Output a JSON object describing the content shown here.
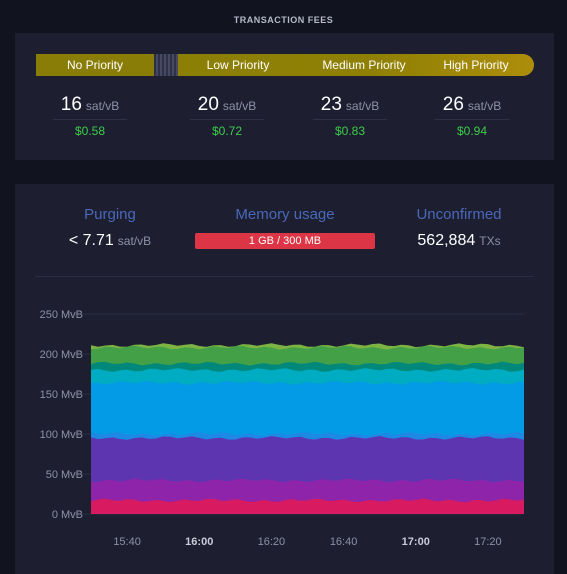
{
  "fees": {
    "title": "TRANSACTION FEES",
    "priorities": [
      {
        "label": "No Priority"
      },
      {
        "label": "Low Priority"
      },
      {
        "label": "Medium Priority"
      },
      {
        "label": "High Priority"
      }
    ],
    "values": [
      {
        "rate": "16",
        "unit": "sat/vB",
        "usd": "$0.58"
      },
      {
        "rate": "20",
        "unit": "sat/vB",
        "usd": "$0.72"
      },
      {
        "rate": "23",
        "unit": "sat/vB",
        "usd": "$0.83"
      },
      {
        "rate": "26",
        "unit": "sat/vB",
        "usd": "$0.94"
      }
    ],
    "colors": {
      "priority_bar": "#8f8005",
      "usd_text": "#3bcc49"
    }
  },
  "stats": {
    "purging": {
      "title": "Purging",
      "value": "< 7.71",
      "unit": "sat/vB"
    },
    "memory": {
      "title": "Memory usage",
      "value": "1 GB / 300 MB",
      "bar_color": "#dc3545"
    },
    "unconfirmed": {
      "title": "Unconfirmed",
      "value": "562,884",
      "unit": "TXs"
    }
  },
  "chart_data": {
    "type": "area",
    "stacked": true,
    "ylabel_unit": "MvB",
    "ylim": [
      0,
      250
    ],
    "y_ticks": [
      "250 MvB",
      "200 MvB",
      "150 MvB",
      "100 MvB",
      "50 MvB",
      "0 MvB"
    ],
    "x_ticks": [
      {
        "label": "15:40",
        "bold": false
      },
      {
        "label": "16:00",
        "bold": true
      },
      {
        "label": "16:20",
        "bold": false
      },
      {
        "label": "16:40",
        "bold": false
      },
      {
        "label": "17:00",
        "bold": true
      },
      {
        "label": "17:20",
        "bold": false
      }
    ],
    "x_range": [
      "15:30",
      "17:30"
    ],
    "grid": true,
    "layers": [
      {
        "color": "#d81b60",
        "top": 17
      },
      {
        "color": "#8e24aa",
        "top": 42
      },
      {
        "color": "#5e35b1",
        "top": 95
      },
      {
        "color": "#1e88e5",
        "top": 100
      },
      {
        "color": "#039be5",
        "top": 164
      },
      {
        "color": "#00acc1",
        "top": 180
      },
      {
        "color": "#00897b",
        "top": 188
      },
      {
        "color": "#43a047",
        "top": 208
      },
      {
        "color": "#7cb342",
        "top": 211
      }
    ]
  }
}
